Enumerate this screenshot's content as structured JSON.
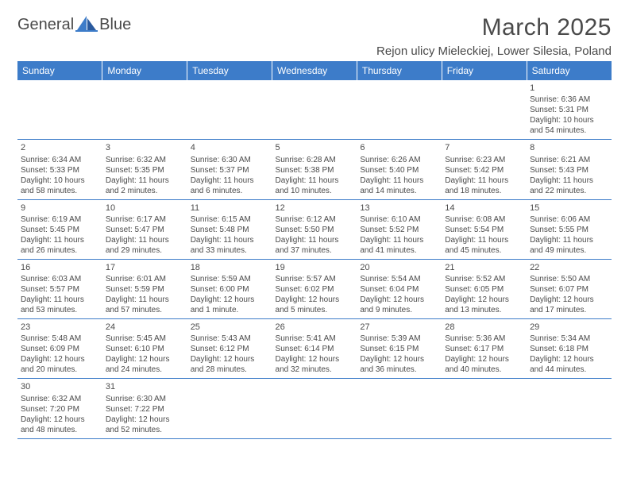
{
  "brand": {
    "part1": "General",
    "part2": "Blue",
    "logo_color": "#3d7cc9"
  },
  "title": "March 2025",
  "location": "Rejon ulicy Mieleckiej, Lower Silesia, Poland",
  "colors": {
    "header_bg": "#3d7cc9",
    "header_fg": "#ffffff",
    "text": "#4a4a4a",
    "rule": "#3d7cc9"
  },
  "fonts": {
    "title_size": 30,
    "location_size": 15,
    "dayhead_size": 12,
    "cell_size": 10
  },
  "dayHeaders": [
    "Sunday",
    "Monday",
    "Tuesday",
    "Wednesday",
    "Thursday",
    "Friday",
    "Saturday"
  ],
  "weeks": [
    [
      null,
      null,
      null,
      null,
      null,
      null,
      {
        "n": "1",
        "sunrise": "Sunrise: 6:36 AM",
        "sunset": "Sunset: 5:31 PM",
        "day": "Daylight: 10 hours and 54 minutes."
      }
    ],
    [
      {
        "n": "2",
        "sunrise": "Sunrise: 6:34 AM",
        "sunset": "Sunset: 5:33 PM",
        "day": "Daylight: 10 hours and 58 minutes."
      },
      {
        "n": "3",
        "sunrise": "Sunrise: 6:32 AM",
        "sunset": "Sunset: 5:35 PM",
        "day": "Daylight: 11 hours and 2 minutes."
      },
      {
        "n": "4",
        "sunrise": "Sunrise: 6:30 AM",
        "sunset": "Sunset: 5:37 PM",
        "day": "Daylight: 11 hours and 6 minutes."
      },
      {
        "n": "5",
        "sunrise": "Sunrise: 6:28 AM",
        "sunset": "Sunset: 5:38 PM",
        "day": "Daylight: 11 hours and 10 minutes."
      },
      {
        "n": "6",
        "sunrise": "Sunrise: 6:26 AM",
        "sunset": "Sunset: 5:40 PM",
        "day": "Daylight: 11 hours and 14 minutes."
      },
      {
        "n": "7",
        "sunrise": "Sunrise: 6:23 AM",
        "sunset": "Sunset: 5:42 PM",
        "day": "Daylight: 11 hours and 18 minutes."
      },
      {
        "n": "8",
        "sunrise": "Sunrise: 6:21 AM",
        "sunset": "Sunset: 5:43 PM",
        "day": "Daylight: 11 hours and 22 minutes."
      }
    ],
    [
      {
        "n": "9",
        "sunrise": "Sunrise: 6:19 AM",
        "sunset": "Sunset: 5:45 PM",
        "day": "Daylight: 11 hours and 26 minutes."
      },
      {
        "n": "10",
        "sunrise": "Sunrise: 6:17 AM",
        "sunset": "Sunset: 5:47 PM",
        "day": "Daylight: 11 hours and 29 minutes."
      },
      {
        "n": "11",
        "sunrise": "Sunrise: 6:15 AM",
        "sunset": "Sunset: 5:48 PM",
        "day": "Daylight: 11 hours and 33 minutes."
      },
      {
        "n": "12",
        "sunrise": "Sunrise: 6:12 AM",
        "sunset": "Sunset: 5:50 PM",
        "day": "Daylight: 11 hours and 37 minutes."
      },
      {
        "n": "13",
        "sunrise": "Sunrise: 6:10 AM",
        "sunset": "Sunset: 5:52 PM",
        "day": "Daylight: 11 hours and 41 minutes."
      },
      {
        "n": "14",
        "sunrise": "Sunrise: 6:08 AM",
        "sunset": "Sunset: 5:54 PM",
        "day": "Daylight: 11 hours and 45 minutes."
      },
      {
        "n": "15",
        "sunrise": "Sunrise: 6:06 AM",
        "sunset": "Sunset: 5:55 PM",
        "day": "Daylight: 11 hours and 49 minutes."
      }
    ],
    [
      {
        "n": "16",
        "sunrise": "Sunrise: 6:03 AM",
        "sunset": "Sunset: 5:57 PM",
        "day": "Daylight: 11 hours and 53 minutes."
      },
      {
        "n": "17",
        "sunrise": "Sunrise: 6:01 AM",
        "sunset": "Sunset: 5:59 PM",
        "day": "Daylight: 11 hours and 57 minutes."
      },
      {
        "n": "18",
        "sunrise": "Sunrise: 5:59 AM",
        "sunset": "Sunset: 6:00 PM",
        "day": "Daylight: 12 hours and 1 minute."
      },
      {
        "n": "19",
        "sunrise": "Sunrise: 5:57 AM",
        "sunset": "Sunset: 6:02 PM",
        "day": "Daylight: 12 hours and 5 minutes."
      },
      {
        "n": "20",
        "sunrise": "Sunrise: 5:54 AM",
        "sunset": "Sunset: 6:04 PM",
        "day": "Daylight: 12 hours and 9 minutes."
      },
      {
        "n": "21",
        "sunrise": "Sunrise: 5:52 AM",
        "sunset": "Sunset: 6:05 PM",
        "day": "Daylight: 12 hours and 13 minutes."
      },
      {
        "n": "22",
        "sunrise": "Sunrise: 5:50 AM",
        "sunset": "Sunset: 6:07 PM",
        "day": "Daylight: 12 hours and 17 minutes."
      }
    ],
    [
      {
        "n": "23",
        "sunrise": "Sunrise: 5:48 AM",
        "sunset": "Sunset: 6:09 PM",
        "day": "Daylight: 12 hours and 20 minutes."
      },
      {
        "n": "24",
        "sunrise": "Sunrise: 5:45 AM",
        "sunset": "Sunset: 6:10 PM",
        "day": "Daylight: 12 hours and 24 minutes."
      },
      {
        "n": "25",
        "sunrise": "Sunrise: 5:43 AM",
        "sunset": "Sunset: 6:12 PM",
        "day": "Daylight: 12 hours and 28 minutes."
      },
      {
        "n": "26",
        "sunrise": "Sunrise: 5:41 AM",
        "sunset": "Sunset: 6:14 PM",
        "day": "Daylight: 12 hours and 32 minutes."
      },
      {
        "n": "27",
        "sunrise": "Sunrise: 5:39 AM",
        "sunset": "Sunset: 6:15 PM",
        "day": "Daylight: 12 hours and 36 minutes."
      },
      {
        "n": "28",
        "sunrise": "Sunrise: 5:36 AM",
        "sunset": "Sunset: 6:17 PM",
        "day": "Daylight: 12 hours and 40 minutes."
      },
      {
        "n": "29",
        "sunrise": "Sunrise: 5:34 AM",
        "sunset": "Sunset: 6:18 PM",
        "day": "Daylight: 12 hours and 44 minutes."
      }
    ],
    [
      {
        "n": "30",
        "sunrise": "Sunrise: 6:32 AM",
        "sunset": "Sunset: 7:20 PM",
        "day": "Daylight: 12 hours and 48 minutes."
      },
      {
        "n": "31",
        "sunrise": "Sunrise: 6:30 AM",
        "sunset": "Sunset: 7:22 PM",
        "day": "Daylight: 12 hours and 52 minutes."
      },
      null,
      null,
      null,
      null,
      null
    ]
  ]
}
